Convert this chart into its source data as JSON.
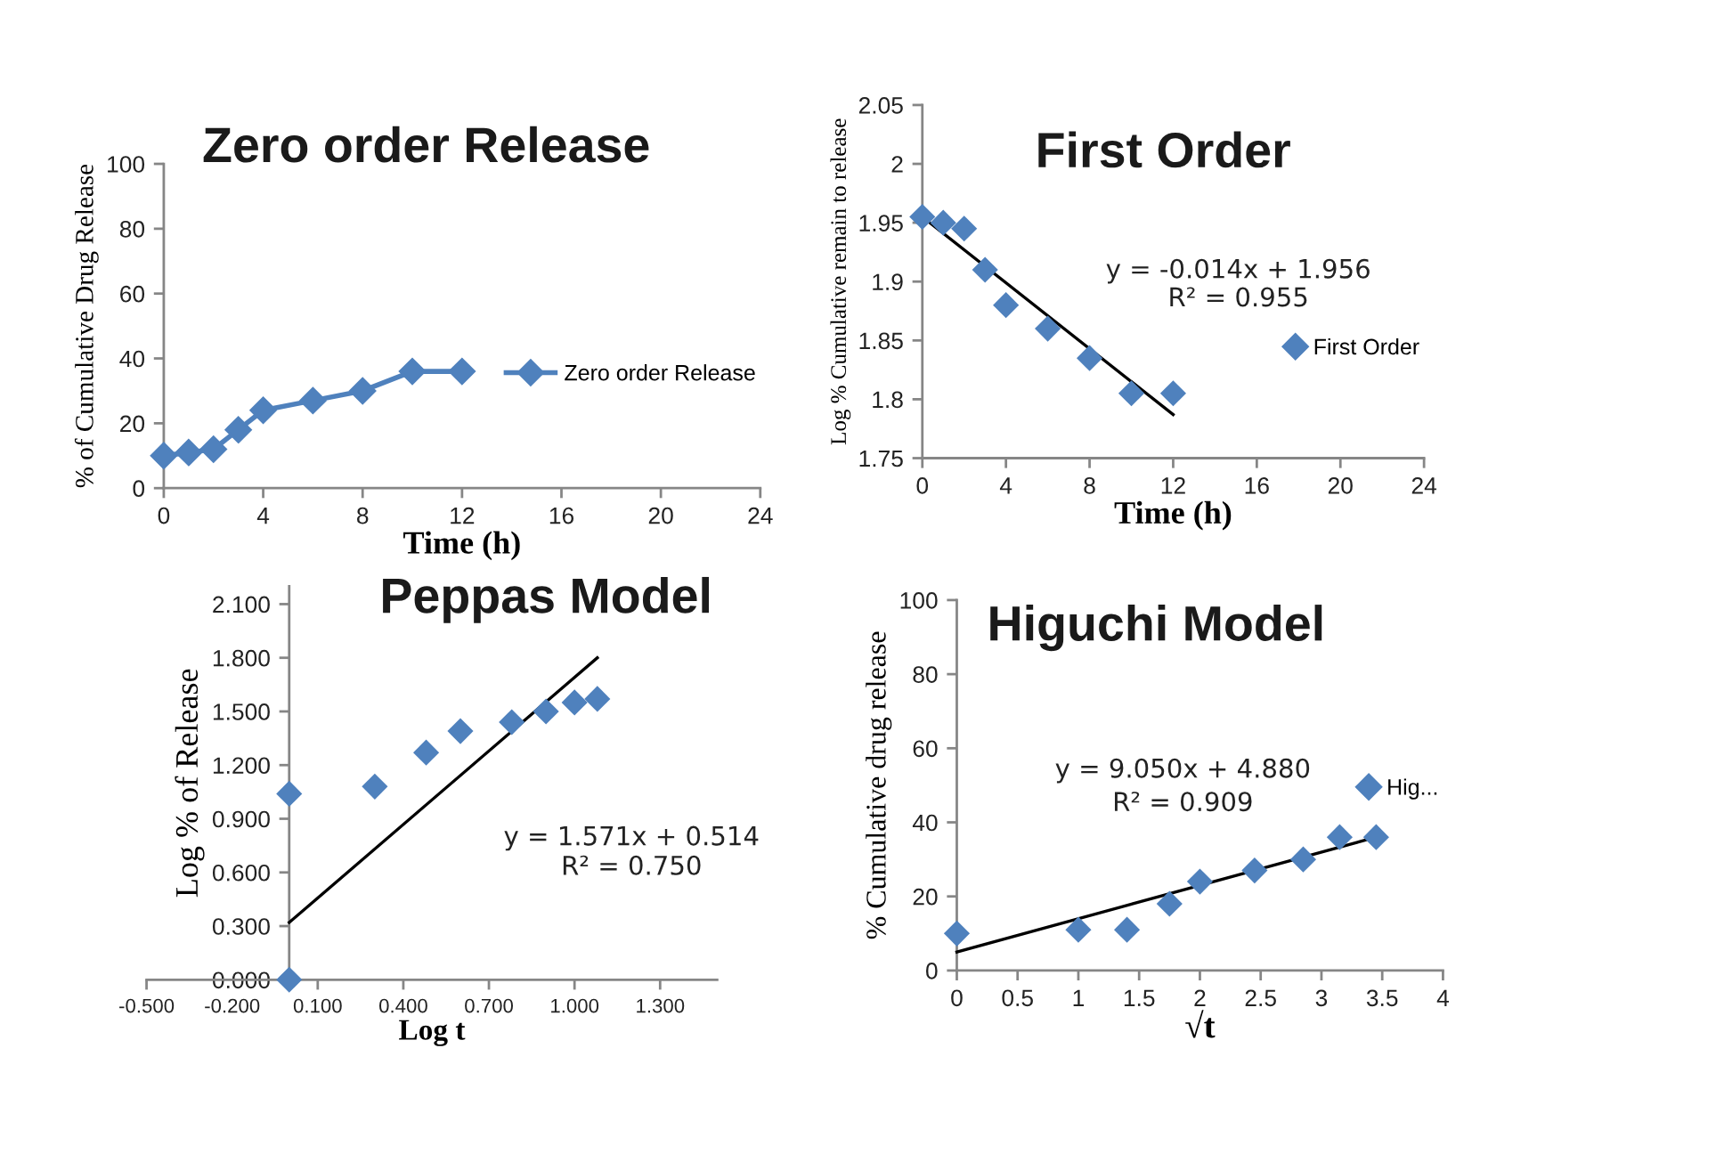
{
  "chart_data": [
    {
      "type": "line",
      "title": "Zero order Release",
      "xlabel": "Time (h)",
      "ylabel": "% of Cumulative Drug Release",
      "xlim": [
        0,
        24
      ],
      "xticks": [
        0,
        4,
        8,
        12,
        16,
        20,
        24
      ],
      "ylim": [
        0,
        100
      ],
      "yticks": [
        0,
        20,
        40,
        60,
        80,
        100
      ],
      "marker": "diamond",
      "legend": "right",
      "series": [
        {
          "name": "Zero order Release",
          "color": "#4f81bd",
          "x": [
            0,
            1,
            2,
            3,
            4,
            6,
            8,
            10,
            12
          ],
          "values": [
            10,
            11,
            12,
            18,
            24,
            27,
            30,
            36,
            36
          ]
        }
      ]
    },
    {
      "type": "scatter",
      "title": "First Order",
      "xlabel": "Time (h)",
      "ylabel": "Log % Cumulative remain to release",
      "xlim": [
        0,
        24
      ],
      "xticks": [
        0,
        4,
        8,
        12,
        16,
        20,
        24
      ],
      "ylim": [
        1.75,
        2.05
      ],
      "yticks": [
        1.75,
        1.8,
        1.85,
        1.9,
        1.95,
        2,
        2.05
      ],
      "marker": "diamond",
      "legend": "right",
      "annotations": [
        "y = -0.014x + 1.956",
        "R² = 0.955"
      ],
      "series": [
        {
          "name": "First Order",
          "color": "#4f81bd",
          "x": [
            0,
            1,
            2,
            3,
            4,
            6,
            8,
            10,
            12
          ],
          "values": [
            1.955,
            1.95,
            1.945,
            1.91,
            1.88,
            1.86,
            1.835,
            1.805,
            1.805
          ]
        },
        {
          "type": "line",
          "marker": "none",
          "color": "#000000",
          "x": [
            0,
            12
          ],
          "values": [
            1.955,
            1.787
          ]
        }
      ]
    },
    {
      "type": "scatter",
      "title": "Peppas Model",
      "xlabel": "Log t",
      "ylabel": "Log % of Release",
      "xlim": [
        -0.5,
        1.5
      ],
      "xticks": [
        {
          "value": -0.5,
          "label": "-0.500"
        },
        {
          "value": -0.2,
          "label": "-0.200"
        },
        {
          "value": 0.1,
          "label": "0.100"
        },
        {
          "value": 0.4,
          "label": "0.400"
        },
        {
          "value": 0.7,
          "label": "0.700"
        },
        {
          "value": 1.0,
          "label": "1.000"
        },
        {
          "value": 1.3,
          "label": "1.300"
        }
      ],
      "ylim": [
        0,
        2.2
      ],
      "yticks": [
        {
          "value": 0,
          "label": "0.000"
        },
        {
          "value": 0.3,
          "label": "0.300"
        },
        {
          "value": 0.6,
          "label": "0.600"
        },
        {
          "value": 0.9,
          "label": "0.900"
        },
        {
          "value": 1.2,
          "label": "1.200"
        },
        {
          "value": 1.5,
          "label": "1.500"
        },
        {
          "value": 1.8,
          "label": "1.800"
        },
        {
          "value": 2.1,
          "label": "2.100"
        }
      ],
      "marker": "diamond",
      "annotations": [
        "y = 1.571x + 0.514",
        "R² = 0.750"
      ],
      "series": [
        {
          "color": "#4f81bd",
          "x": [
            0,
            0,
            0.3,
            0.48,
            0.6,
            0.78,
            0.9,
            1.0,
            1.08
          ],
          "values": [
            0,
            1.04,
            1.08,
            1.27,
            1.39,
            1.44,
            1.5,
            1.55,
            1.57
          ]
        },
        {
          "type": "line",
          "marker": "none",
          "color": "#000000",
          "x": [
            0,
            1.08
          ],
          "values": [
            0.32,
            1.8
          ]
        }
      ]
    },
    {
      "type": "scatter",
      "title": "Higuchi Model",
      "xlabel": "√t",
      "ylabel": "% Cumulative drug release",
      "xlim": [
        0,
        4
      ],
      "xticks": [
        0,
        0.5,
        1,
        1.5,
        2,
        2.5,
        3,
        3.5,
        4
      ],
      "ylim": [
        0,
        100
      ],
      "yticks": [
        0,
        20,
        40,
        60,
        80,
        100
      ],
      "marker": "diamond",
      "legend": "right",
      "annotations": [
        "y = 9.050x + 4.880",
        "R² = 0.909"
      ],
      "series": [
        {
          "name": "Hig...",
          "color": "#4f81bd",
          "x": [
            0,
            1,
            1.4,
            1.75,
            2,
            2.45,
            2.85,
            3.15,
            3.45
          ],
          "values": [
            10,
            11,
            11,
            18,
            24,
            27,
            30,
            36,
            36
          ]
        },
        {
          "type": "line",
          "marker": "none",
          "color": "#000000",
          "x": [
            0,
            3.45
          ],
          "values": [
            5,
            36
          ]
        }
      ]
    }
  ]
}
